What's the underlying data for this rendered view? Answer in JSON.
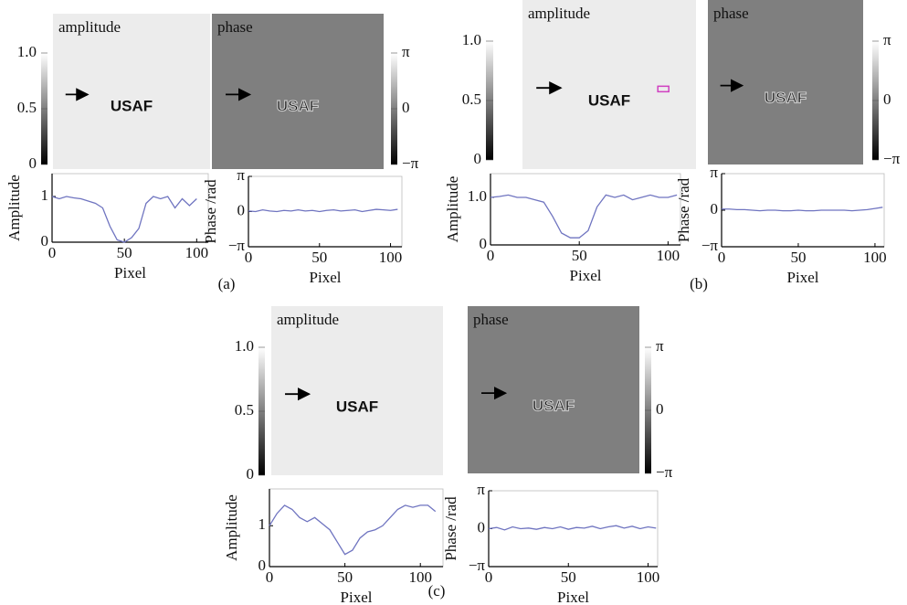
{
  "chart_data": [
    {
      "type": "image",
      "title": "amplitude",
      "image_text": "USAF",
      "ylim": [
        0,
        1
      ],
      "yticks": [
        0,
        0.5,
        {
          "value": 1,
          "label": "1.0"
        }
      ]
    },
    {
      "type": "image",
      "title": "phase",
      "image_text": "USAF",
      "ylim": [
        -3.14159,
        3.14159
      ],
      "yticks": [
        {
          "value": 3.14159,
          "label": "π"
        },
        0,
        {
          "value": -3.14159,
          "label": "−π"
        }
      ]
    },
    {
      "type": "line",
      "panel_label": "(a)",
      "xlabel": "Pixel",
      "ylabel": "Amplitude",
      "xlim": [
        0,
        108
      ],
      "xticks": [
        0,
        50,
        100
      ],
      "ylim": [
        0,
        1.5
      ],
      "yticks": [
        0,
        1
      ],
      "x": [
        0,
        5,
        10,
        15,
        20,
        25,
        30,
        35,
        40,
        45,
        50,
        55,
        60,
        65,
        70,
        75,
        80,
        85,
        90,
        95,
        100
      ],
      "series": [
        {
          "color": "#6f74c0",
          "values": [
            1.0,
            0.95,
            1.0,
            0.97,
            0.95,
            0.9,
            0.85,
            0.75,
            0.35,
            0.05,
            0.0,
            0.1,
            0.3,
            0.85,
            1.0,
            0.95,
            1.0,
            0.75,
            0.95,
            0.8,
            0.95
          ]
        }
      ]
    },
    {
      "type": "line",
      "xlabel": "Pixel",
      "ylabel": "Phase /rad",
      "xlim": [
        0,
        108
      ],
      "xticks": [
        0,
        50,
        100
      ],
      "ylim": [
        -3.14159,
        3.14159
      ],
      "yticks": [
        {
          "value": -3.14159,
          "label": "−π"
        },
        0,
        {
          "value": 3.14159,
          "label": "π"
        }
      ],
      "x": [
        0,
        5,
        10,
        15,
        20,
        25,
        30,
        35,
        40,
        45,
        50,
        55,
        60,
        65,
        70,
        75,
        80,
        85,
        90,
        95,
        100,
        105
      ],
      "series": [
        {
          "color": "#6f74c0",
          "values": [
            0.05,
            0.0,
            0.15,
            0.05,
            0.0,
            0.1,
            0.05,
            0.15,
            0.05,
            0.1,
            0.0,
            0.1,
            0.15,
            0.05,
            0.1,
            0.15,
            0.0,
            0.1,
            0.2,
            0.15,
            0.1,
            0.2
          ]
        }
      ]
    },
    {
      "type": "image",
      "title": "amplitude",
      "image_text": "USAF",
      "ylim": [
        0,
        1
      ],
      "yticks": [
        0,
        0.5,
        {
          "value": 1,
          "label": "1.0"
        }
      ]
    },
    {
      "type": "image",
      "title": "phase",
      "image_text": "USAF",
      "ylim": [
        -3.14159,
        3.14159
      ],
      "yticks": [
        {
          "value": 3.14159,
          "label": "π"
        },
        0,
        {
          "value": -3.14159,
          "label": "−π"
        }
      ]
    },
    {
      "type": "line",
      "panel_label": "(b)",
      "xlabel": "Pixel",
      "ylabel": "Amplitude",
      "xlim": [
        0,
        107
      ],
      "xticks": [
        0,
        50,
        100
      ],
      "ylim": [
        0,
        1.5
      ],
      "yticks": [
        0,
        {
          "value": 1,
          "label": "1.0"
        }
      ],
      "x": [
        0,
        5,
        10,
        15,
        20,
        25,
        30,
        35,
        40,
        45,
        50,
        55,
        60,
        65,
        70,
        75,
        80,
        85,
        90,
        95,
        100,
        105
      ],
      "series": [
        {
          "color": "#6f74c0",
          "values": [
            1.0,
            1.02,
            1.05,
            1.0,
            1.0,
            0.95,
            0.9,
            0.6,
            0.25,
            0.15,
            0.15,
            0.3,
            0.8,
            1.05,
            1.0,
            1.05,
            0.95,
            1.0,
            1.05,
            1.0,
            1.0,
            1.05
          ]
        }
      ]
    },
    {
      "type": "line",
      "xlabel": "Pixel",
      "ylabel": "Phase /rad",
      "xlim": [
        0,
        106
      ],
      "xticks": [
        0,
        50,
        100
      ],
      "ylim": [
        -3.14159,
        3.14159
      ],
      "yticks": [
        {
          "value": -3.14159,
          "label": "−π"
        },
        0,
        {
          "value": 3.14159,
          "label": "π"
        }
      ],
      "x": [
        0,
        5,
        10,
        15,
        20,
        25,
        30,
        35,
        40,
        45,
        50,
        55,
        60,
        65,
        70,
        75,
        80,
        85,
        90,
        95,
        100,
        105
      ],
      "series": [
        {
          "color": "#6f74c0",
          "values": [
            0.1,
            0.1,
            0.05,
            0.05,
            0.0,
            -0.05,
            0.0,
            0.0,
            -0.05,
            -0.05,
            0.0,
            -0.05,
            -0.05,
            0.0,
            0.0,
            0.0,
            0.0,
            -0.05,
            0.0,
            0.05,
            0.15,
            0.25
          ]
        }
      ]
    },
    {
      "type": "image",
      "title": "amplitude",
      "image_text": "USAF",
      "ylim": [
        0,
        1
      ],
      "yticks": [
        0,
        0.5,
        {
          "value": 1,
          "label": "1.0"
        }
      ]
    },
    {
      "type": "image",
      "title": "phase",
      "image_text": "USAF",
      "ylim": [
        -3.14159,
        3.14159
      ],
      "yticks": [
        {
          "value": 3.14159,
          "label": "π"
        },
        0,
        {
          "value": -3.14159,
          "label": "−π"
        }
      ]
    },
    {
      "type": "line",
      "panel_label": "(c)",
      "xlabel": "Pixel",
      "ylabel": "Amplitude",
      "xlim": [
        0,
        115
      ],
      "xticks": [
        0,
        50,
        100
      ],
      "ylim": [
        0,
        1.9
      ],
      "yticks": [
        0,
        1
      ],
      "x": [
        0,
        5,
        10,
        15,
        20,
        25,
        30,
        35,
        40,
        45,
        50,
        55,
        60,
        65,
        70,
        75,
        80,
        85,
        90,
        95,
        100,
        105,
        110
      ],
      "series": [
        {
          "color": "#6f74c0",
          "values": [
            1.0,
            1.3,
            1.5,
            1.4,
            1.2,
            1.1,
            1.2,
            1.05,
            0.9,
            0.6,
            0.3,
            0.4,
            0.7,
            0.85,
            0.9,
            1.0,
            1.2,
            1.4,
            1.5,
            1.45,
            1.5,
            1.5,
            1.35
          ]
        }
      ]
    },
    {
      "type": "line",
      "xlabel": "Pixel",
      "ylabel": "Phase /rad",
      "xlim": [
        0,
        106
      ],
      "xticks": [
        0,
        50,
        100
      ],
      "ylim": [
        -3.14159,
        3.14159
      ],
      "yticks": [
        {
          "value": -3.14159,
          "label": "−π"
        },
        0,
        {
          "value": 3.14159,
          "label": "π"
        }
      ],
      "x": [
        0,
        5,
        10,
        15,
        20,
        25,
        30,
        35,
        40,
        45,
        50,
        55,
        60,
        65,
        70,
        75,
        80,
        85,
        90,
        95,
        100,
        105
      ],
      "series": [
        {
          "color": "#6f74c0",
          "values": [
            0.0,
            0.1,
            -0.1,
            0.15,
            0.0,
            0.05,
            -0.05,
            0.1,
            0.0,
            0.15,
            -0.05,
            0.1,
            0.05,
            0.2,
            0.0,
            0.15,
            0.25,
            0.05,
            0.2,
            0.0,
            0.15,
            0.05
          ]
        }
      ]
    }
  ]
}
